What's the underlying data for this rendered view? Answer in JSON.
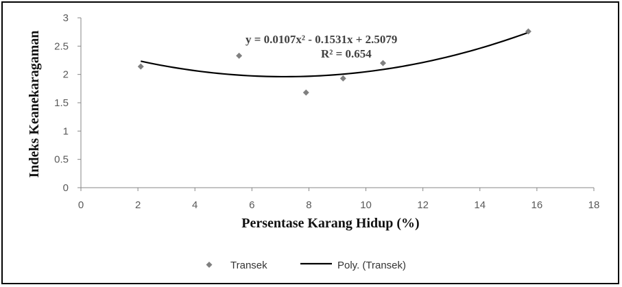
{
  "chart_data": {
    "type": "scatter",
    "xlabel": "Persentase Karang Hidup (%)",
    "ylabel": "Indeks Keanekaragaman",
    "xlim": [
      0,
      18
    ],
    "ylim": [
      0,
      3
    ],
    "xticks": [
      0,
      2,
      4,
      6,
      8,
      10,
      12,
      14,
      16,
      18
    ],
    "yticks": [
      0,
      0.5,
      1,
      1.5,
      2,
      2.5,
      3
    ],
    "grid": false,
    "legend_position": "bottom",
    "series": [
      {
        "name": "Transek",
        "marker": "diamond",
        "color": "#808080",
        "points": [
          {
            "x": 2.1,
            "y": 2.14
          },
          {
            "x": 5.55,
            "y": 2.33
          },
          {
            "x": 7.9,
            "y": 1.68
          },
          {
            "x": 9.2,
            "y": 1.93
          },
          {
            "x": 10.6,
            "y": 2.2
          },
          {
            "x": 15.7,
            "y": 2.76
          }
        ]
      }
    ],
    "trendline": {
      "name": "Poly. (Transek)",
      "type": "polynomial",
      "order": 2,
      "coefficients": [
        0.0107,
        -0.1531,
        2.5079
      ],
      "x_range": [
        2.1,
        15.7
      ],
      "color": "#000000",
      "equation_label": "y = 0.0107x² - 0.1531x + 2.5079",
      "r2_label": "R² = 0.654"
    }
  }
}
